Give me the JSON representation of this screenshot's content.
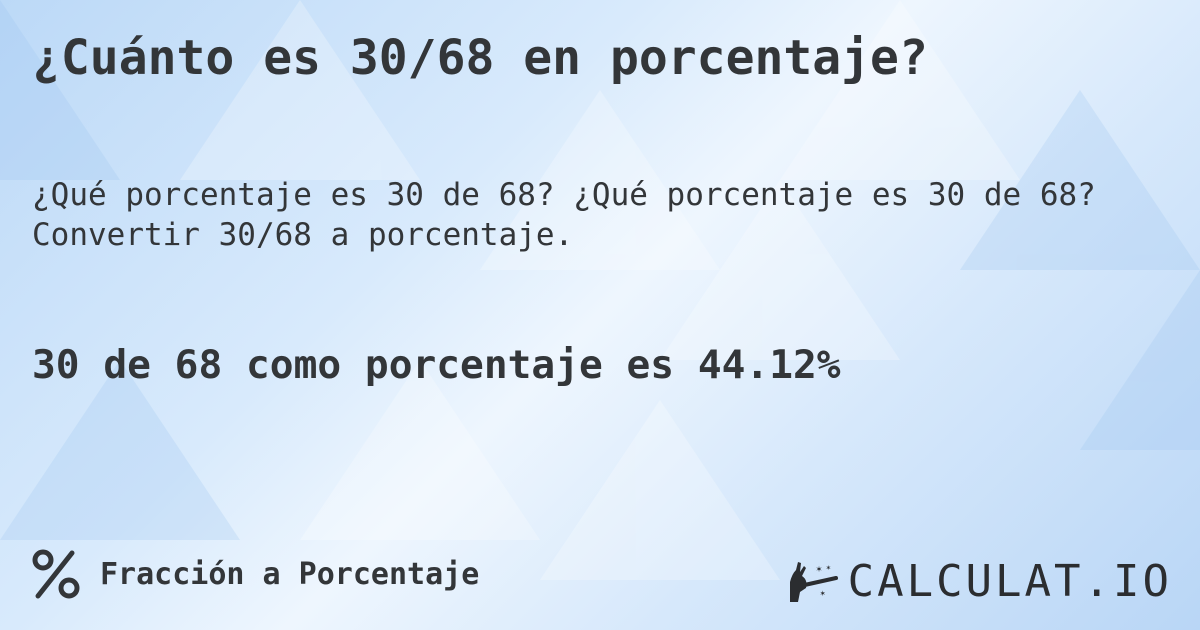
{
  "title": "¿Cuánto es 30/68 en porcentaje?",
  "description": "¿Qué porcentaje es 30 de 68? ¿Qué porcentaje es 30 de 68? Convertir 30/68 a porcentaje.",
  "result": "30 de 68 como porcentaje es 44.12%",
  "footer": {
    "icon": "percent-icon",
    "label": "Fracción a Porcentaje"
  },
  "logo": {
    "text": "CALCULAT.IO",
    "icon": "magic-hand-wand-icon"
  },
  "colors": {
    "text": "#333639",
    "background": "#d8eafc"
  }
}
